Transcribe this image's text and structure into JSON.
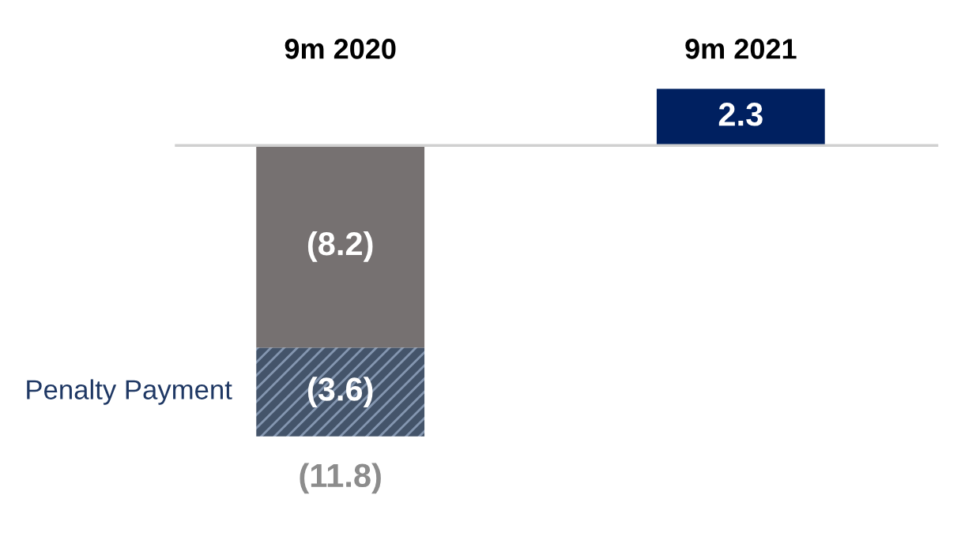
{
  "chart_data": {
    "type": "bar",
    "stacked": true,
    "categories": [
      "9m 2020",
      "9m 2021"
    ],
    "series": [
      {
        "colors": [
          "#767171",
          "#002060"
        ],
        "values": [
          -8.2,
          2.3
        ],
        "value_labels": [
          "(8.2)",
          "2.3"
        ]
      },
      {
        "name": "Penalty Payment",
        "color": "#44546a",
        "values": [
          -3.6,
          null
        ],
        "value_labels": [
          "(3.6)",
          null
        ]
      }
    ],
    "totals": [
      "(11.8)",
      null
    ]
  }
}
